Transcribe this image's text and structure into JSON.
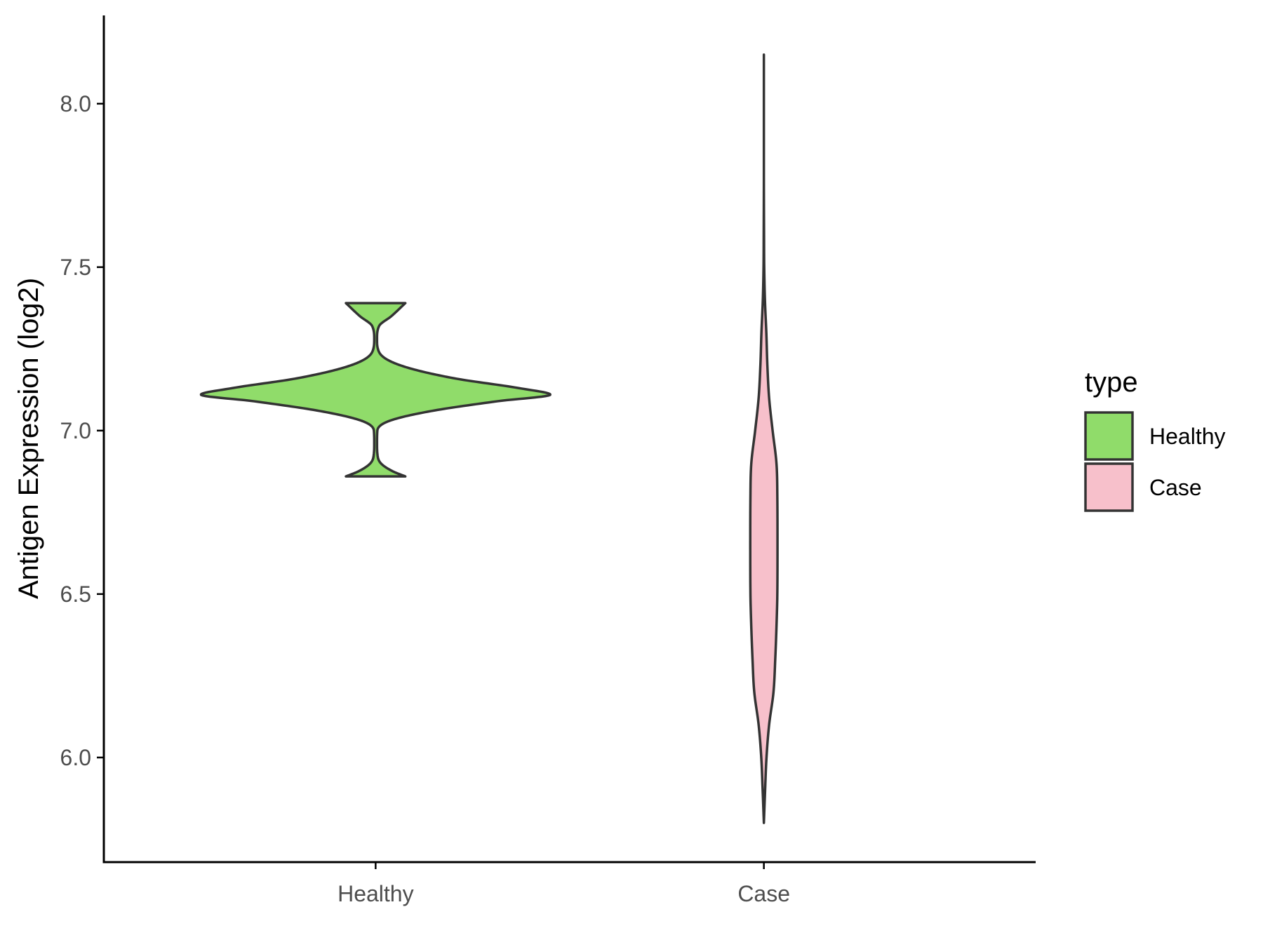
{
  "chart_data": {
    "type": "violin",
    "title": "",
    "xlabel": "",
    "ylabel": "Antigen Expression (log2)",
    "categories": [
      "Healthy",
      "Case"
    ],
    "ylim": [
      5.68,
      8.27
    ],
    "yticks": [
      6.0,
      6.5,
      7.0,
      7.5,
      8.0
    ],
    "ytick_labels": [
      "6.0",
      "6.5",
      "7.0",
      "7.5",
      "8.0"
    ],
    "legend": {
      "title": "type",
      "position": "right",
      "entries": [
        "Healthy",
        "Case"
      ]
    },
    "series": [
      {
        "name": "Healthy",
        "color": "#90dc6a",
        "min": 6.86,
        "max": 7.39,
        "density_profile": [
          [
            6.86,
            0.17
          ],
          [
            6.875,
            0.1
          ],
          [
            6.9,
            0.03
          ],
          [
            6.93,
            0.01
          ],
          [
            6.96,
            0.008
          ],
          [
            7.0,
            0.01
          ],
          [
            7.03,
            0.08
          ],
          [
            7.06,
            0.32
          ],
          [
            7.09,
            0.7
          ],
          [
            7.11,
            1.0
          ],
          [
            7.13,
            0.82
          ],
          [
            7.16,
            0.45
          ],
          [
            7.2,
            0.14
          ],
          [
            7.24,
            0.02
          ],
          [
            7.28,
            0.008
          ],
          [
            7.32,
            0.02
          ],
          [
            7.35,
            0.09
          ],
          [
            7.39,
            0.17
          ]
        ]
      },
      {
        "name": "Case",
        "color": "#f7c0cb",
        "min": 5.8,
        "max": 8.15,
        "density_profile": [
          [
            5.8,
            0.0
          ],
          [
            5.9,
            0.007
          ],
          [
            6.0,
            0.015
          ],
          [
            6.1,
            0.03
          ],
          [
            6.2,
            0.055
          ],
          [
            6.3,
            0.065
          ],
          [
            6.45,
            0.075
          ],
          [
            6.5,
            0.077
          ],
          [
            6.65,
            0.078
          ],
          [
            6.8,
            0.077
          ],
          [
            6.9,
            0.072
          ],
          [
            7.0,
            0.05
          ],
          [
            7.1,
            0.03
          ],
          [
            7.2,
            0.02
          ],
          [
            7.3,
            0.014
          ],
          [
            7.4,
            0.006
          ],
          [
            7.5,
            0.002
          ],
          [
            7.6,
            0.001
          ],
          [
            7.8,
            0.0
          ],
          [
            8.15,
            0.0
          ]
        ]
      }
    ]
  }
}
